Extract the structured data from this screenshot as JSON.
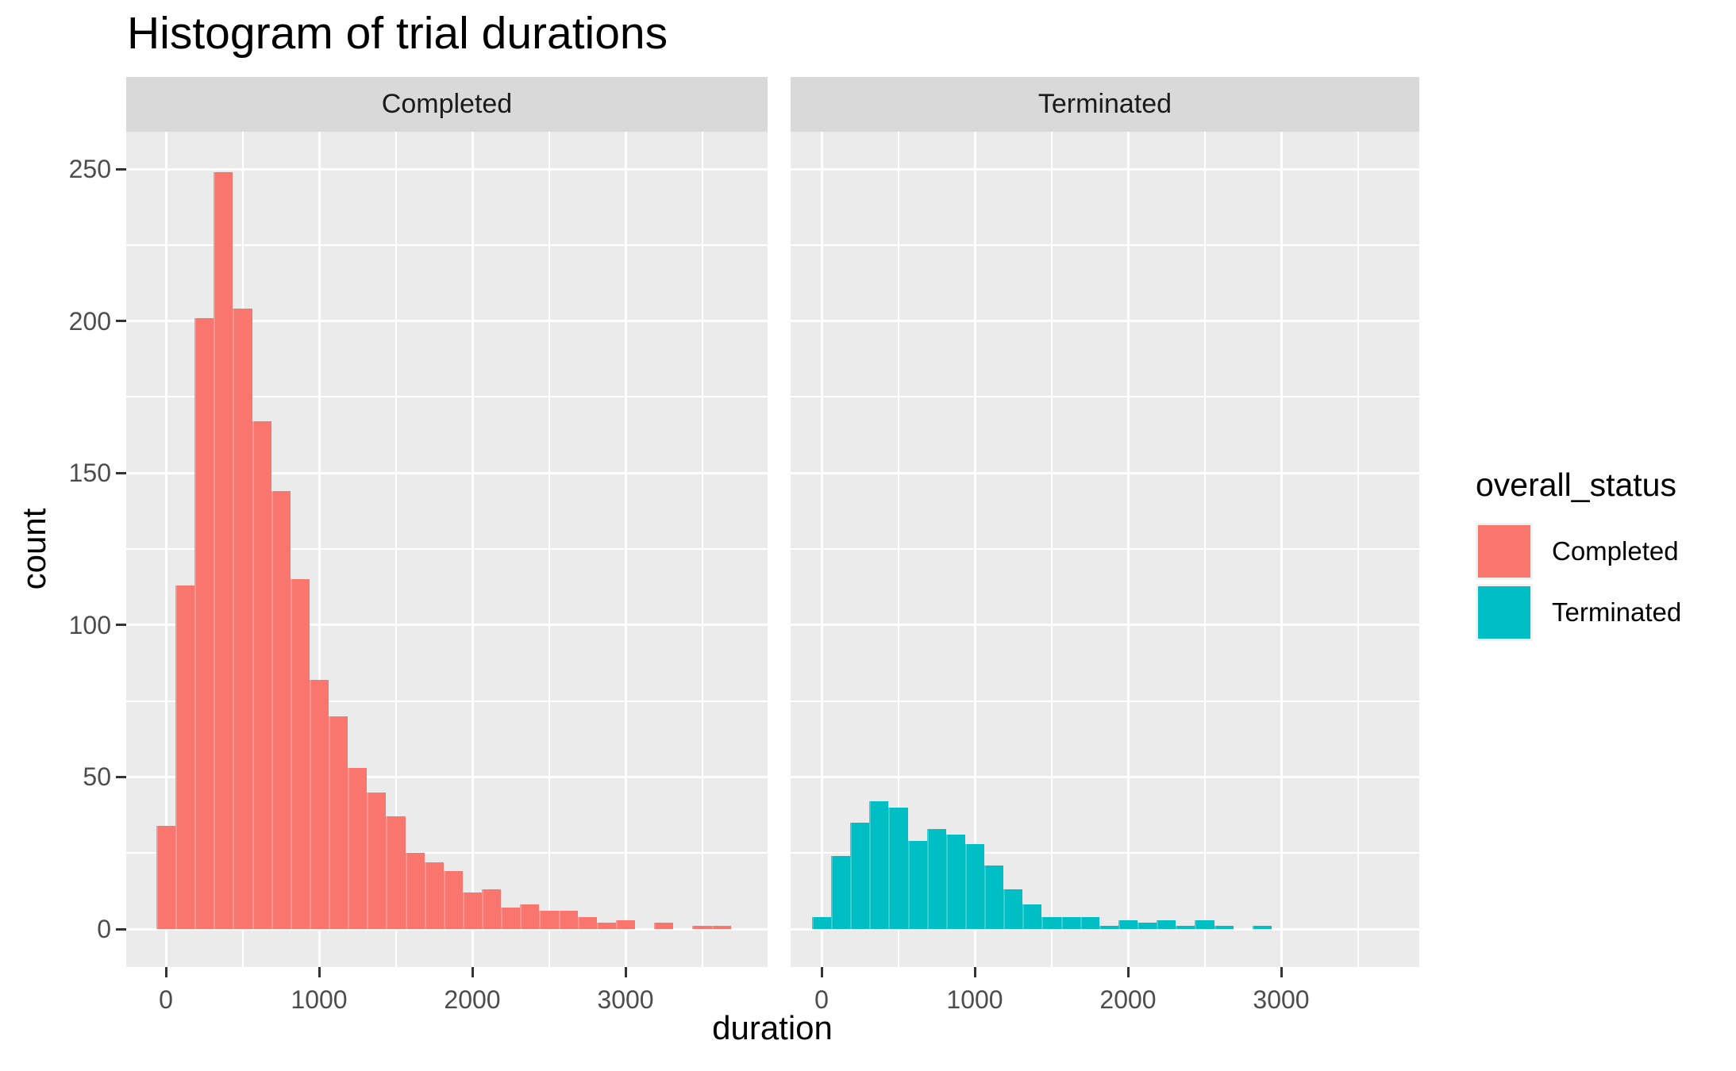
{
  "title": "Histogram of trial durations",
  "facets": [
    "Completed",
    "Terminated"
  ],
  "axes": {
    "x_title": "duration",
    "y_title": "count",
    "x_tick_values": [
      0,
      1000,
      2000,
      3000
    ],
    "x_tick_labels": [
      "0",
      "1000",
      "2000",
      "3000"
    ],
    "y_tick_values": [
      0,
      50,
      100,
      150,
      200,
      250
    ],
    "y_tick_labels": [
      "0",
      "50",
      "100",
      "150",
      "200",
      "250"
    ]
  },
  "legend": {
    "title": "overall_status",
    "items": [
      {
        "label": "Completed",
        "color": "#F8766D"
      },
      {
        "label": "Terminated",
        "color": "#00BFC4"
      }
    ]
  },
  "colors": {
    "completed_fill": "#F8766D",
    "terminated_fill": "#00BFC4",
    "panel_background": "#EBEBEB",
    "strip_background": "#D9D9D9",
    "grid": "#FFFFFF",
    "tick_text": "#4D4D4D",
    "strip_text": "#1A1A1A"
  },
  "chart_data": {
    "type": "bar",
    "subtype": "faceted_histogram",
    "title": "Histogram of trial durations",
    "xlabel": "duration",
    "ylabel": "count",
    "facet_variable": "overall_status",
    "binwidth": 125,
    "bin_centers": [
      0,
      125,
      250,
      375,
      500,
      625,
      750,
      875,
      1000,
      1125,
      1250,
      1375,
      1500,
      1625,
      1750,
      1875,
      2000,
      2125,
      2250,
      2375,
      2500,
      2625,
      2750,
      2875,
      3000,
      3125,
      3250,
      3375,
      3500,
      3625
    ],
    "series": [
      {
        "name": "Completed",
        "color": "#F8766D",
        "values": [
          34,
          113,
          201,
          249,
          204,
          167,
          144,
          115,
          82,
          70,
          53,
          45,
          37,
          25,
          22,
          19,
          12,
          13,
          7,
          8,
          6,
          6,
          4,
          2,
          3,
          0,
          2,
          0,
          1,
          1
        ]
      },
      {
        "name": "Terminated",
        "color": "#00BFC4",
        "values": [
          4,
          24,
          35,
          42,
          40,
          29,
          33,
          31,
          28,
          21,
          13,
          8,
          4,
          4,
          4,
          1,
          3,
          2,
          3,
          1,
          3,
          1,
          0,
          1,
          0,
          0,
          0,
          0,
          0,
          0
        ]
      }
    ],
    "xlim": [
      -250,
      3930
    ],
    "ylim": [
      0,
      262
    ],
    "x_minor_gridlines": [
      500,
      1500,
      2500,
      3500
    ],
    "y_minor_gridlines": [
      25,
      75,
      125,
      175,
      225
    ],
    "grid": "on",
    "legend_position": "right"
  }
}
